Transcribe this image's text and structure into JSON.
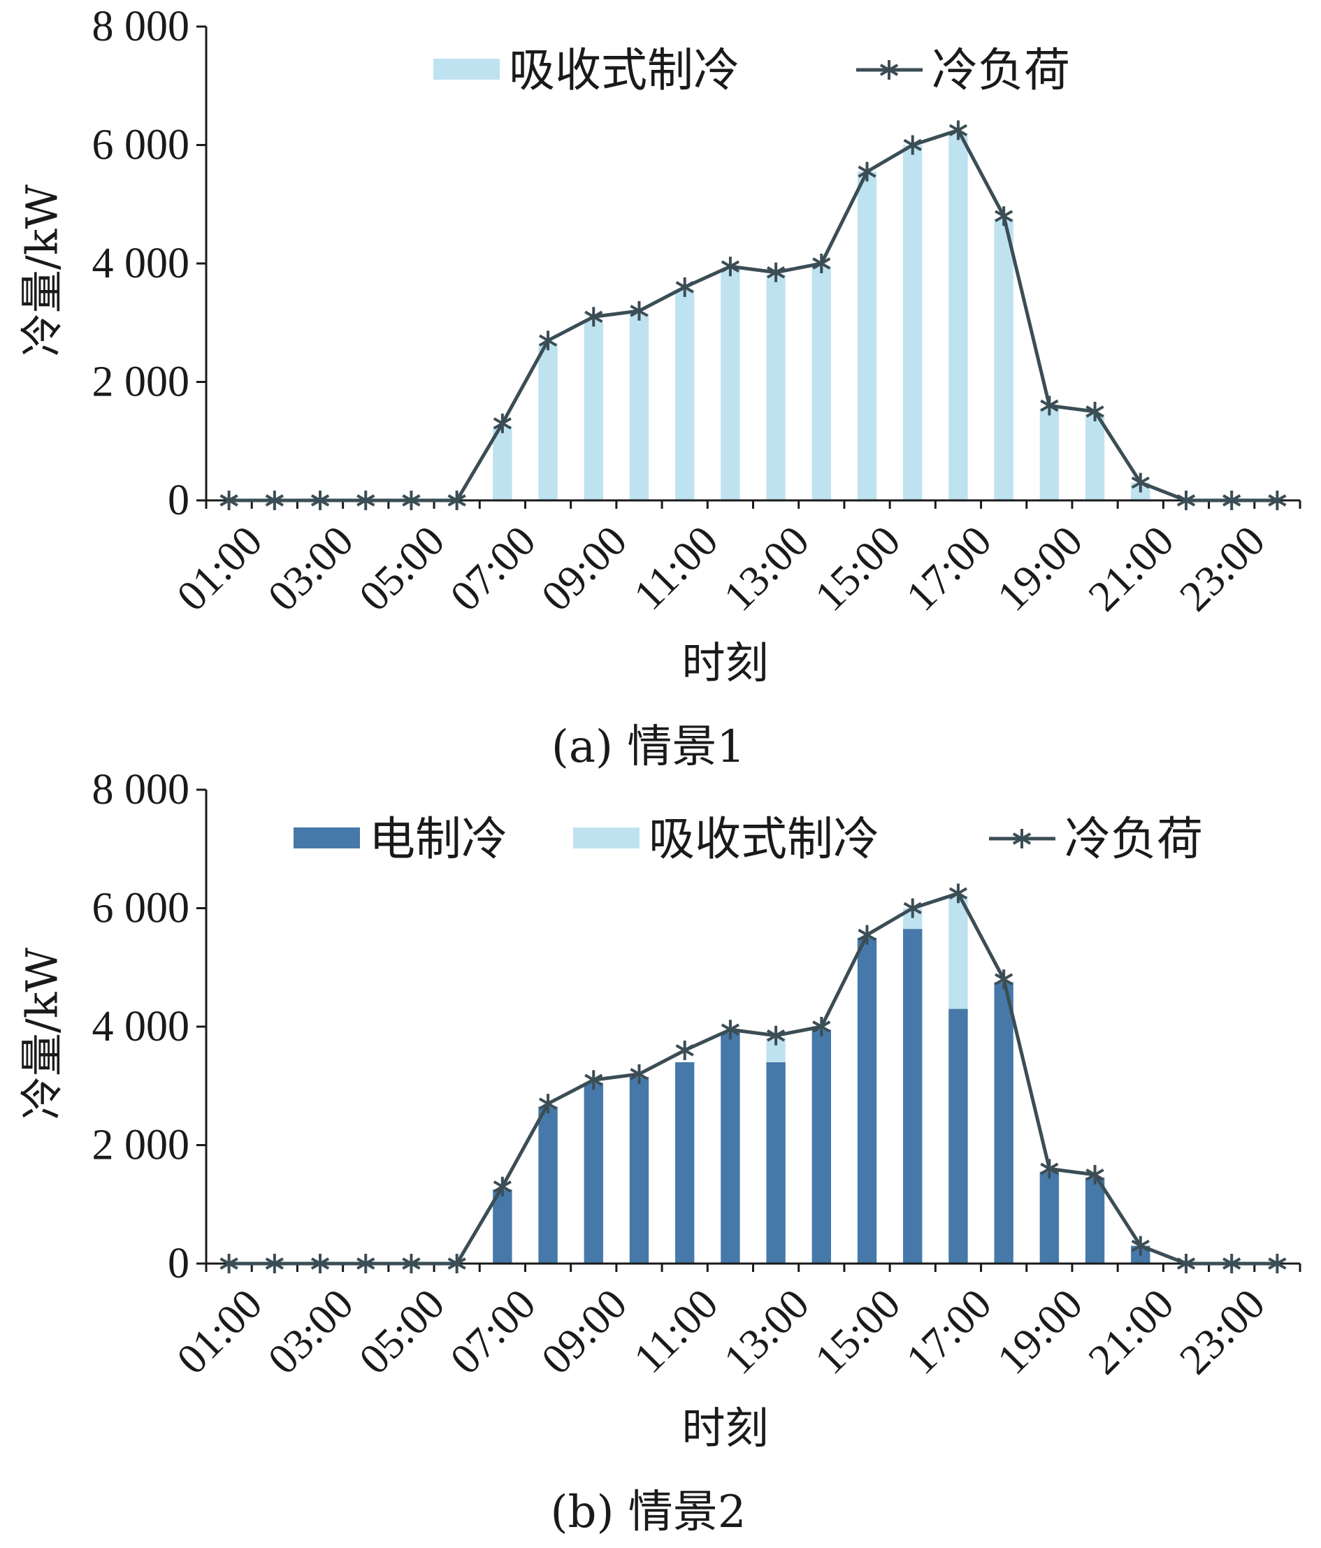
{
  "colors": {
    "absorption": "#bfe2f0",
    "electric": "#4679a9",
    "load_line": "#3b4d55",
    "axis": "#1a1a1a"
  },
  "chart_data": [
    {
      "type": "bar",
      "subtype": "stacked bar with line overlay",
      "caption": "(a) 情景1",
      "xlabel": "时刻",
      "ylabel": "冷量/kW",
      "ylim": [
        0,
        8000
      ],
      "yticks": [
        0,
        2000,
        4000,
        6000,
        8000
      ],
      "ytick_labels": [
        "0",
        "2 000",
        "4 000",
        "6 000",
        "8 000"
      ],
      "categories": [
        "01:00",
        "02:00",
        "03:00",
        "04:00",
        "05:00",
        "06:00",
        "07:00",
        "08:00",
        "09:00",
        "10:00",
        "11:00",
        "12:00",
        "13:00",
        "14:00",
        "15:00",
        "16:00",
        "17:00",
        "18:00",
        "19:00",
        "20:00",
        "21:00",
        "22:00",
        "23:00",
        "24:00"
      ],
      "xtick_labels": [
        "01:00",
        "03:00",
        "05:00",
        "07:00",
        "09:00",
        "11:00",
        "13:00",
        "15:00",
        "17:00",
        "19:00",
        "21:00",
        "23:00"
      ],
      "legend_position": "top",
      "series": [
        {
          "name": "吸收式制冷",
          "kind": "bar",
          "color_key": "absorption",
          "values": [
            0,
            0,
            0,
            0,
            0,
            0,
            1250,
            2650,
            3050,
            3150,
            3550,
            3900,
            3800,
            3950,
            5550,
            6000,
            6200,
            4750,
            1550,
            1450,
            300,
            0,
            0,
            0
          ]
        },
        {
          "name": "冷负荷",
          "kind": "line",
          "marker": "asterisk",
          "color_key": "load_line",
          "values": [
            0,
            0,
            0,
            0,
            0,
            0,
            1300,
            2700,
            3100,
            3200,
            3600,
            3950,
            3850,
            4000,
            5550,
            6000,
            6250,
            4800,
            1600,
            1500,
            300,
            0,
            0,
            0
          ]
        }
      ]
    },
    {
      "type": "bar",
      "subtype": "stacked bar with line overlay",
      "caption": "(b) 情景2",
      "xlabel": "时刻",
      "ylabel": "冷量/kW",
      "ylim": [
        0,
        8000
      ],
      "yticks": [
        0,
        2000,
        4000,
        6000,
        8000
      ],
      "ytick_labels": [
        "0",
        "2 000",
        "4 000",
        "6 000",
        "8 000"
      ],
      "categories": [
        "01:00",
        "02:00",
        "03:00",
        "04:00",
        "05:00",
        "06:00",
        "07:00",
        "08:00",
        "09:00",
        "10:00",
        "11:00",
        "12:00",
        "13:00",
        "14:00",
        "15:00",
        "16:00",
        "17:00",
        "18:00",
        "19:00",
        "20:00",
        "21:00",
        "22:00",
        "23:00",
        "24:00"
      ],
      "xtick_labels": [
        "01:00",
        "03:00",
        "05:00",
        "07:00",
        "09:00",
        "11:00",
        "13:00",
        "15:00",
        "17:00",
        "19:00",
        "21:00",
        "23:00"
      ],
      "legend_position": "top",
      "series": [
        {
          "name": "电制冷",
          "kind": "bar",
          "color_key": "electric",
          "values": [
            0,
            0,
            0,
            0,
            0,
            0,
            1250,
            2650,
            3050,
            3150,
            3400,
            3900,
            3400,
            3950,
            5500,
            5650,
            4300,
            4750,
            1550,
            1450,
            300,
            0,
            0,
            0
          ]
        },
        {
          "name": "吸收式制冷",
          "kind": "bar",
          "color_key": "absorption",
          "values": [
            0,
            0,
            0,
            0,
            0,
            0,
            0,
            0,
            0,
            0,
            0,
            0,
            400,
            0,
            0,
            350,
            1900,
            0,
            0,
            0,
            0,
            0,
            0,
            0
          ]
        },
        {
          "name": "冷负荷",
          "kind": "line",
          "marker": "asterisk",
          "color_key": "load_line",
          "values": [
            0,
            0,
            0,
            0,
            0,
            0,
            1300,
            2700,
            3100,
            3200,
            3600,
            3950,
            3850,
            4000,
            5550,
            6000,
            6250,
            4800,
            1600,
            1500,
            300,
            0,
            0,
            0
          ]
        }
      ]
    }
  ]
}
